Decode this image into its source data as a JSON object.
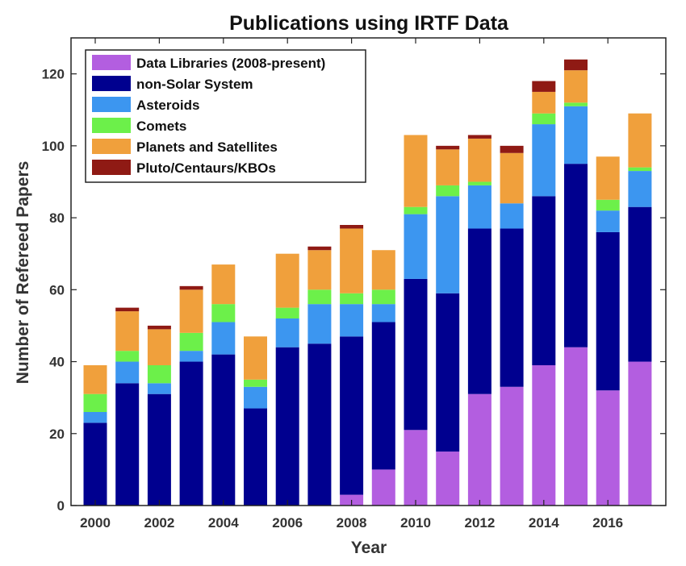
{
  "chart_data": {
    "type": "bar",
    "stacked": true,
    "title": "Publications using IRTF Data",
    "xlabel": "Year",
    "ylabel": "Number of Refereed Papers",
    "categories": [
      "2000",
      "2001",
      "2002",
      "2003",
      "2004",
      "2005",
      "2006",
      "2007",
      "2008",
      "2009",
      "2010",
      "2011",
      "2012",
      "2013",
      "2014",
      "2015",
      "2016",
      "2017"
    ],
    "x_tick_labels": [
      "2000",
      "2002",
      "2004",
      "2006",
      "2008",
      "2010",
      "2012",
      "2014",
      "2016"
    ],
    "y_ticks": [
      0,
      20,
      40,
      60,
      80,
      100,
      120
    ],
    "ylim": [
      0,
      130
    ],
    "grid": false,
    "legend_position": "top-left",
    "series": [
      {
        "name": "Data Libraries (2008-present)",
        "color": "#b35ee0",
        "values": [
          0,
          0,
          0,
          0,
          0,
          0,
          0,
          0,
          3,
          10,
          21,
          15,
          31,
          33,
          39,
          44,
          32,
          40
        ]
      },
      {
        "name": "non-Solar System",
        "color": "#00008f",
        "values": [
          23,
          34,
          31,
          40,
          42,
          27,
          44,
          45,
          44,
          41,
          42,
          44,
          46,
          44,
          47,
          51,
          44,
          43
        ]
      },
      {
        "name": "Asteroids",
        "color": "#3c96f0",
        "values": [
          3,
          6,
          3,
          3,
          9,
          6,
          8,
          11,
          9,
          5,
          18,
          27,
          12,
          7,
          20,
          16,
          6,
          10
        ]
      },
      {
        "name": "Comets",
        "color": "#6cf04a",
        "values": [
          5,
          3,
          5,
          5,
          5,
          2,
          3,
          4,
          3,
          4,
          2,
          3,
          1,
          0,
          3,
          1,
          3,
          1
        ]
      },
      {
        "name": "Planets and Satellites",
        "color": "#f0a03c",
        "values": [
          8,
          11,
          10,
          12,
          11,
          12,
          15,
          11,
          18,
          11,
          20,
          10,
          12,
          14,
          6,
          9,
          12,
          15
        ]
      },
      {
        "name": "Pluto/Centaurs/KBOs",
        "color": "#8f1a14",
        "values": [
          0,
          1,
          1,
          1,
          0,
          0,
          0,
          1,
          1,
          0,
          0,
          1,
          1,
          2,
          3,
          3,
          0,
          0
        ]
      }
    ]
  }
}
